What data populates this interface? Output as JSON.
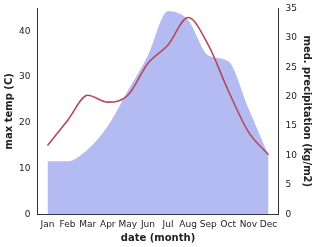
{
  "chart_data": {
    "type": "line",
    "x_label": "date (month)",
    "y_label": "max temp (C)",
    "y2_label": "med. precipitation (kg/m2)",
    "categories": [
      "Jan",
      "Feb",
      "Mar",
      "Apr",
      "May",
      "Jun",
      "Jul",
      "Aug",
      "Sep",
      "Oct",
      "Nov",
      "Dec"
    ],
    "series": [
      {
        "name": "med. precipitation",
        "type": "area",
        "axis": "y2",
        "color": "#b3bbf2",
        "values": [
          9,
          9,
          11,
          15,
          21,
          27,
          34.5,
          33,
          27,
          26,
          18,
          10
        ]
      },
      {
        "name": "max temp",
        "type": "line",
        "color": "#b5485a",
        "values": [
          15,
          20.5,
          26,
          24.5,
          26,
          33,
          37,
          43,
          37,
          27,
          18,
          13
        ]
      }
    ],
    "ylim": [
      0,
      45
    ],
    "yticks": [
      0,
      10,
      20,
      30,
      40
    ],
    "y2lim": [
      0,
      35
    ],
    "y2ticks": [
      0,
      5,
      10,
      15,
      20,
      25,
      30,
      35
    ],
    "grid": false
  }
}
